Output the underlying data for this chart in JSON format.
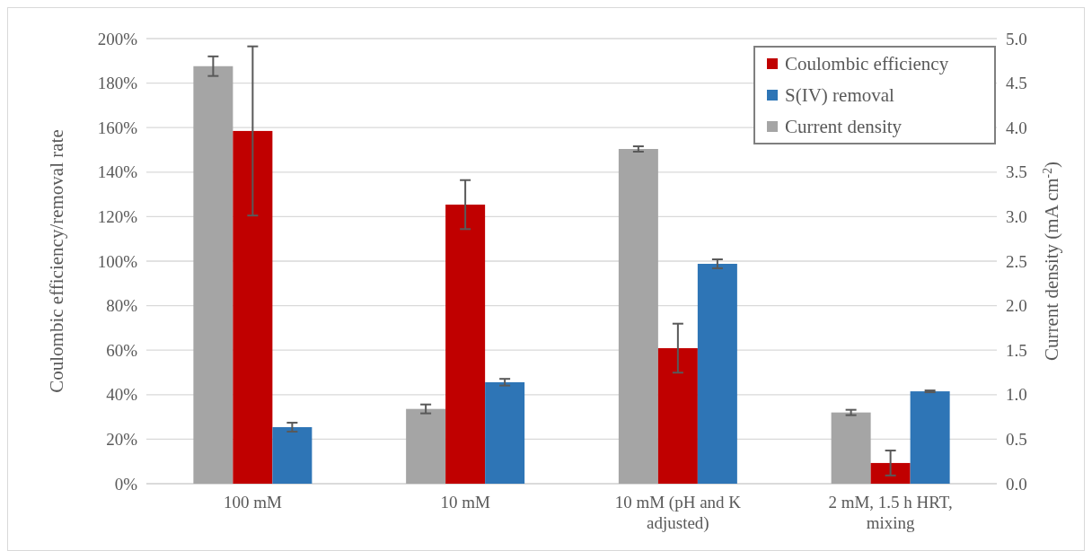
{
  "chart_data": {
    "type": "bar",
    "categories": [
      "100 mM",
      "10 mM",
      "10 mM (pH and K adjusted)",
      "2 mM, 1.5 h HRT, mixing"
    ],
    "ylabel": "Coulombic efficiency/removal rate",
    "y2label": "Current density (mA cm$^{-2}$)",
    "series": [
      {
        "name": "Coulombic efficiency",
        "color": "#c00000",
        "values": [
          158.5,
          125.4,
          60.9,
          9.3
        ],
        "errors": [
          38,
          11,
          11,
          5.6
        ]
      },
      {
        "name": "S(IV) removal",
        "color": "#2e75b6",
        "values": [
          25.4,
          45.6,
          98.8,
          41.5
        ],
        "errors": [
          2,
          1.5,
          2,
          0.4
        ]
      },
      {
        "name": "Current density",
        "color": "#a5a5a5",
        "axis": "y2",
        "values": [
          4.69,
          0.84,
          3.76,
          0.8
        ],
        "errors": [
          0.11,
          0.05,
          0.03,
          0.03
        ]
      }
    ],
    "ylim": [
      0,
      200
    ],
    "yticks": [
      {
        "value": 0,
        "label": "0%"
      },
      {
        "value": 20,
        "label": "20%"
      },
      {
        "value": 40,
        "label": "40%"
      },
      {
        "value": 60,
        "label": "60%"
      },
      {
        "value": 80,
        "label": "80%"
      },
      {
        "value": 100,
        "label": "100%"
      },
      {
        "value": 120,
        "label": "120%"
      },
      {
        "value": 140,
        "label": "140%"
      },
      {
        "value": 160,
        "label": "160%"
      },
      {
        "value": 180,
        "label": "180%"
      },
      {
        "value": 200,
        "label": "200%"
      }
    ],
    "y2lim": [
      0,
      5
    ],
    "y2ticks": [
      {
        "value": 0,
        "label": "0.0"
      },
      {
        "value": 0.5,
        "label": "0.5"
      },
      {
        "value": 1,
        "label": "1.0"
      },
      {
        "value": 1.5,
        "label": "1.5"
      },
      {
        "value": 2,
        "label": "2.0"
      },
      {
        "value": 2.5,
        "label": "2.5"
      },
      {
        "value": 3,
        "label": "3.0"
      },
      {
        "value": 3.5,
        "label": "3.5"
      },
      {
        "value": 4,
        "label": "4.0"
      },
      {
        "value": 4.5,
        "label": "4.5"
      },
      {
        "value": 5,
        "label": "5.0"
      }
    ],
    "grid": "y",
    "legend": "top right"
  }
}
